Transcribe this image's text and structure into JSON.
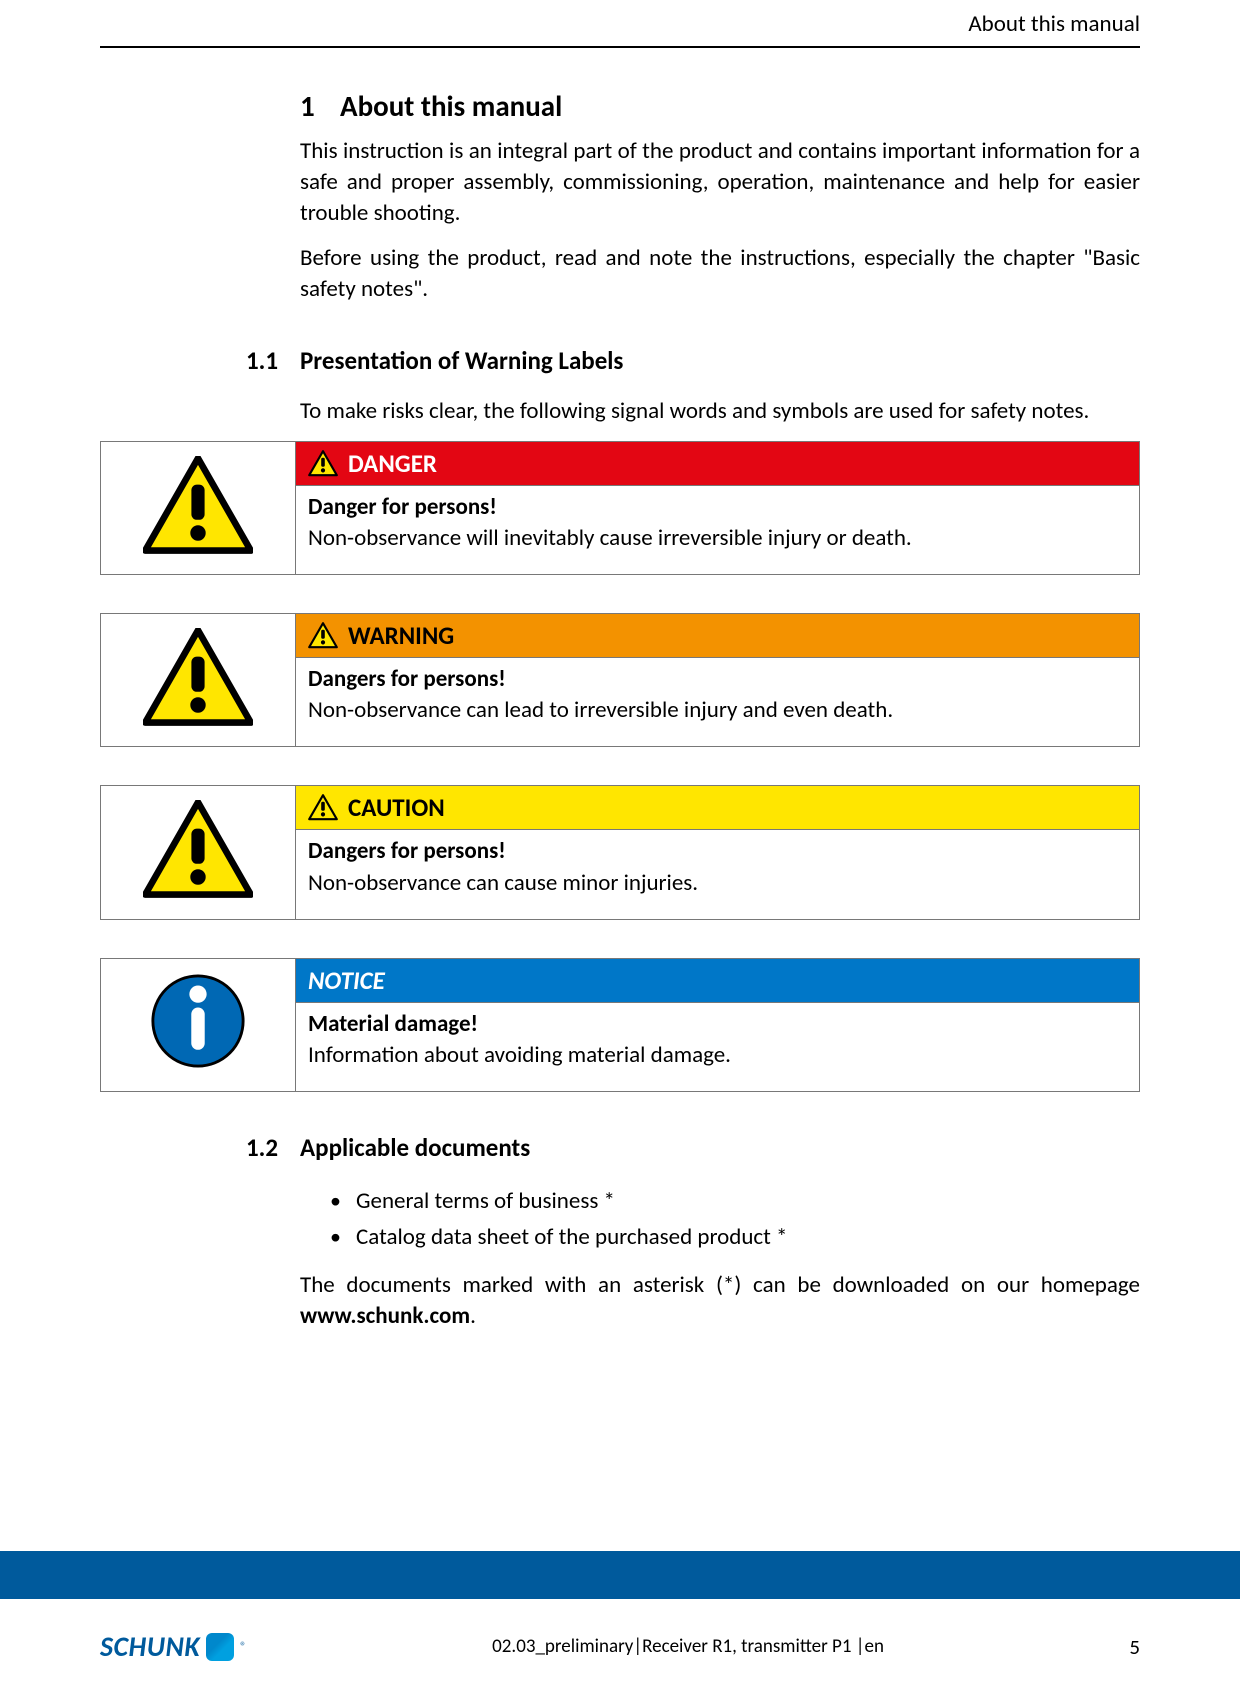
{
  "header": {
    "title": "About this manual"
  },
  "section1": {
    "num": "1",
    "title": "About this manual",
    "p1": "This instruction is an integral part of the product and contains important information for a safe and proper assembly, commissioning, operation, maintenance and help for easier trouble shooting.",
    "p2": "Before using the product, read and note the instructions, especially the chapter \"Basic safety notes\"."
  },
  "section11": {
    "num": "1.1",
    "title": "Presentation of Warning Labels",
    "intro": "To make risks clear, the following signal words and symbols are used for safety notes."
  },
  "warnings": [
    {
      "label": "DANGER",
      "label_color": "#ffffff",
      "header_bg": "#e30613",
      "icon_type": "triangle",
      "bold_line": "Danger for persons!",
      "body_line": "Non-observance will inevitably cause irreversible injury or death."
    },
    {
      "label": "WARNING",
      "label_color": "#000000",
      "header_bg": "#f39200",
      "icon_type": "triangle",
      "bold_line": "Dangers for persons!",
      "body_line": "Non-observance can lead to irreversible injury and even death."
    },
    {
      "label": "CAUTION",
      "label_color": "#000000",
      "header_bg": "#ffe600",
      "icon_type": "triangle",
      "bold_line": "Dangers for persons!",
      "body_line": "Non-observance can cause minor injuries."
    },
    {
      "label": "NOTICE",
      "label_color": "#ffffff",
      "header_bg": "#0077c8",
      "icon_type": "circle",
      "bold_line": "Material damage!",
      "body_line": "Information about avoiding material damage."
    }
  ],
  "section12": {
    "num": "1.2",
    "title": "Applicable documents",
    "bullets": [
      "General terms of business *",
      "Catalog data sheet of the purchased product *"
    ],
    "outro_pre": "The documents marked with an asterisk (*) can be downloaded on our homepage ",
    "outro_bold": "www.schunk.com",
    "outro_post": "."
  },
  "footer": {
    "logo_text": "SCHUNK",
    "doc_id": "02.03_preliminary|Receiver R1, transmitter P1 |en",
    "page_num": "5",
    "band_color": "#0b5a8a"
  },
  "style": {
    "border_color": "#787878",
    "text_color": "#000000"
  }
}
